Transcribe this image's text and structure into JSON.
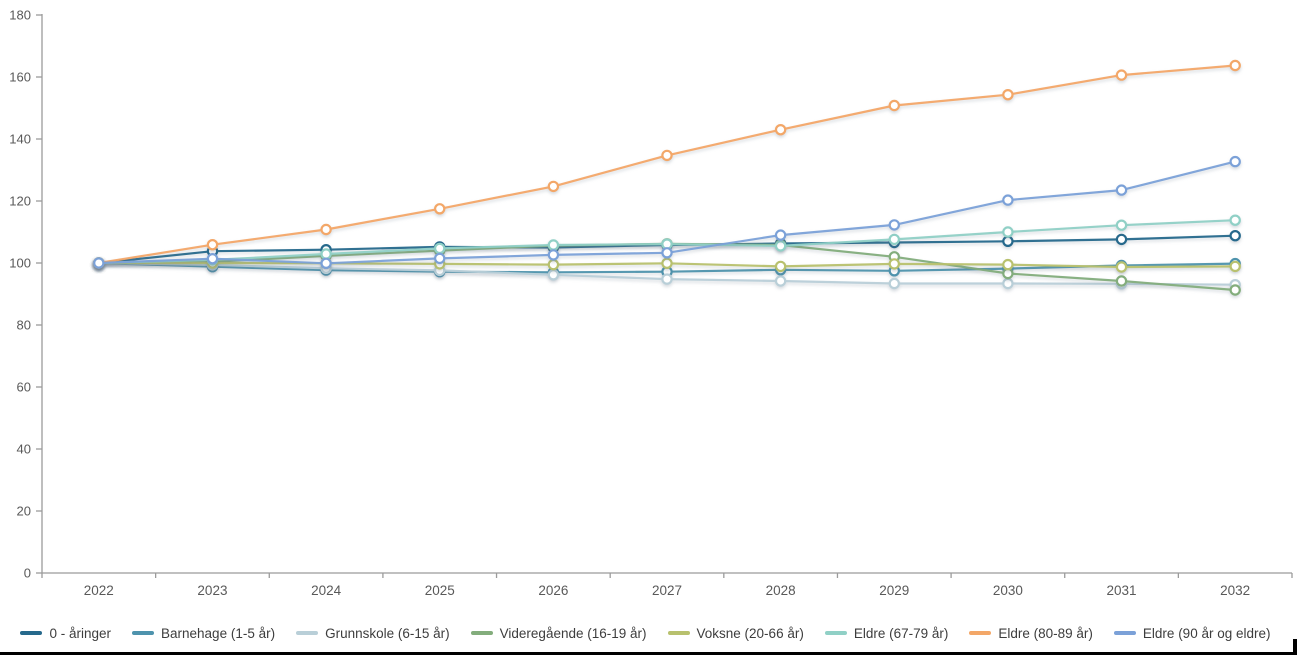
{
  "chart_data": {
    "type": "line",
    "title": "",
    "xlabel": "",
    "ylabel": "",
    "x": [
      "2022",
      "2023",
      "2024",
      "2025",
      "2026",
      "2027",
      "2028",
      "2029",
      "2030",
      "2031",
      "2032"
    ],
    "ylim": [
      0,
      180
    ],
    "yticks": [
      0,
      20,
      40,
      60,
      80,
      100,
      120,
      140,
      160,
      180
    ],
    "grid": false,
    "legend_position": "bottom",
    "axis_color": "#9b9b9b",
    "tick_label_color": "#595959",
    "marker_fill": "#ffffff",
    "series": [
      {
        "name": "0 - åringer",
        "color": "#26698c",
        "values": [
          100,
          103.8,
          104.3,
          105.2,
          105.0,
          105.8,
          106.3,
          106.6,
          107.0,
          107.6,
          108.8
        ]
      },
      {
        "name": "Barnehage (1-5 år)",
        "color": "#4e93ad",
        "values": [
          100,
          98.8,
          97.7,
          97.2,
          97.0,
          97.2,
          97.8,
          97.5,
          98.2,
          99.2,
          99.8
        ]
      },
      {
        "name": "Grunnskole (6-15 år)",
        "color": "#b9cfd8",
        "values": [
          100,
          99.4,
          98.3,
          97.6,
          96.2,
          94.8,
          94.2,
          93.4,
          93.4,
          93.3,
          93.0
        ]
      },
      {
        "name": "Videregående (16-19 år)",
        "color": "#83ad7c",
        "values": [
          100,
          100.4,
          102.3,
          104.0,
          105.6,
          106.2,
          105.8,
          102.0,
          96.6,
          94.2,
          91.3
        ]
      },
      {
        "name": "Voksne (20-66 år)",
        "color": "#b8c16e",
        "values": [
          100,
          100.0,
          99.9,
          99.7,
          99.5,
          99.9,
          98.9,
          99.7,
          99.5,
          98.7,
          98.9
        ]
      },
      {
        "name": "Eldre (67-79 år)",
        "color": "#90d0c6",
        "values": [
          100,
          101.0,
          102.9,
          104.7,
          105.8,
          106.1,
          105.5,
          107.6,
          110.0,
          112.2,
          113.8
        ]
      },
      {
        "name": "Eldre (80-89 år)",
        "color": "#f3a768",
        "values": [
          100,
          105.9,
          110.8,
          117.5,
          124.7,
          134.7,
          143.0,
          150.8,
          154.3,
          160.6,
          163.7
        ]
      },
      {
        "name": "Eldre (90 år og eldre)",
        "color": "#7ba1d8",
        "values": [
          100,
          101.4,
          99.9,
          101.5,
          102.6,
          103.3,
          109.0,
          112.3,
          120.3,
          123.5,
          132.7
        ]
      }
    ]
  }
}
